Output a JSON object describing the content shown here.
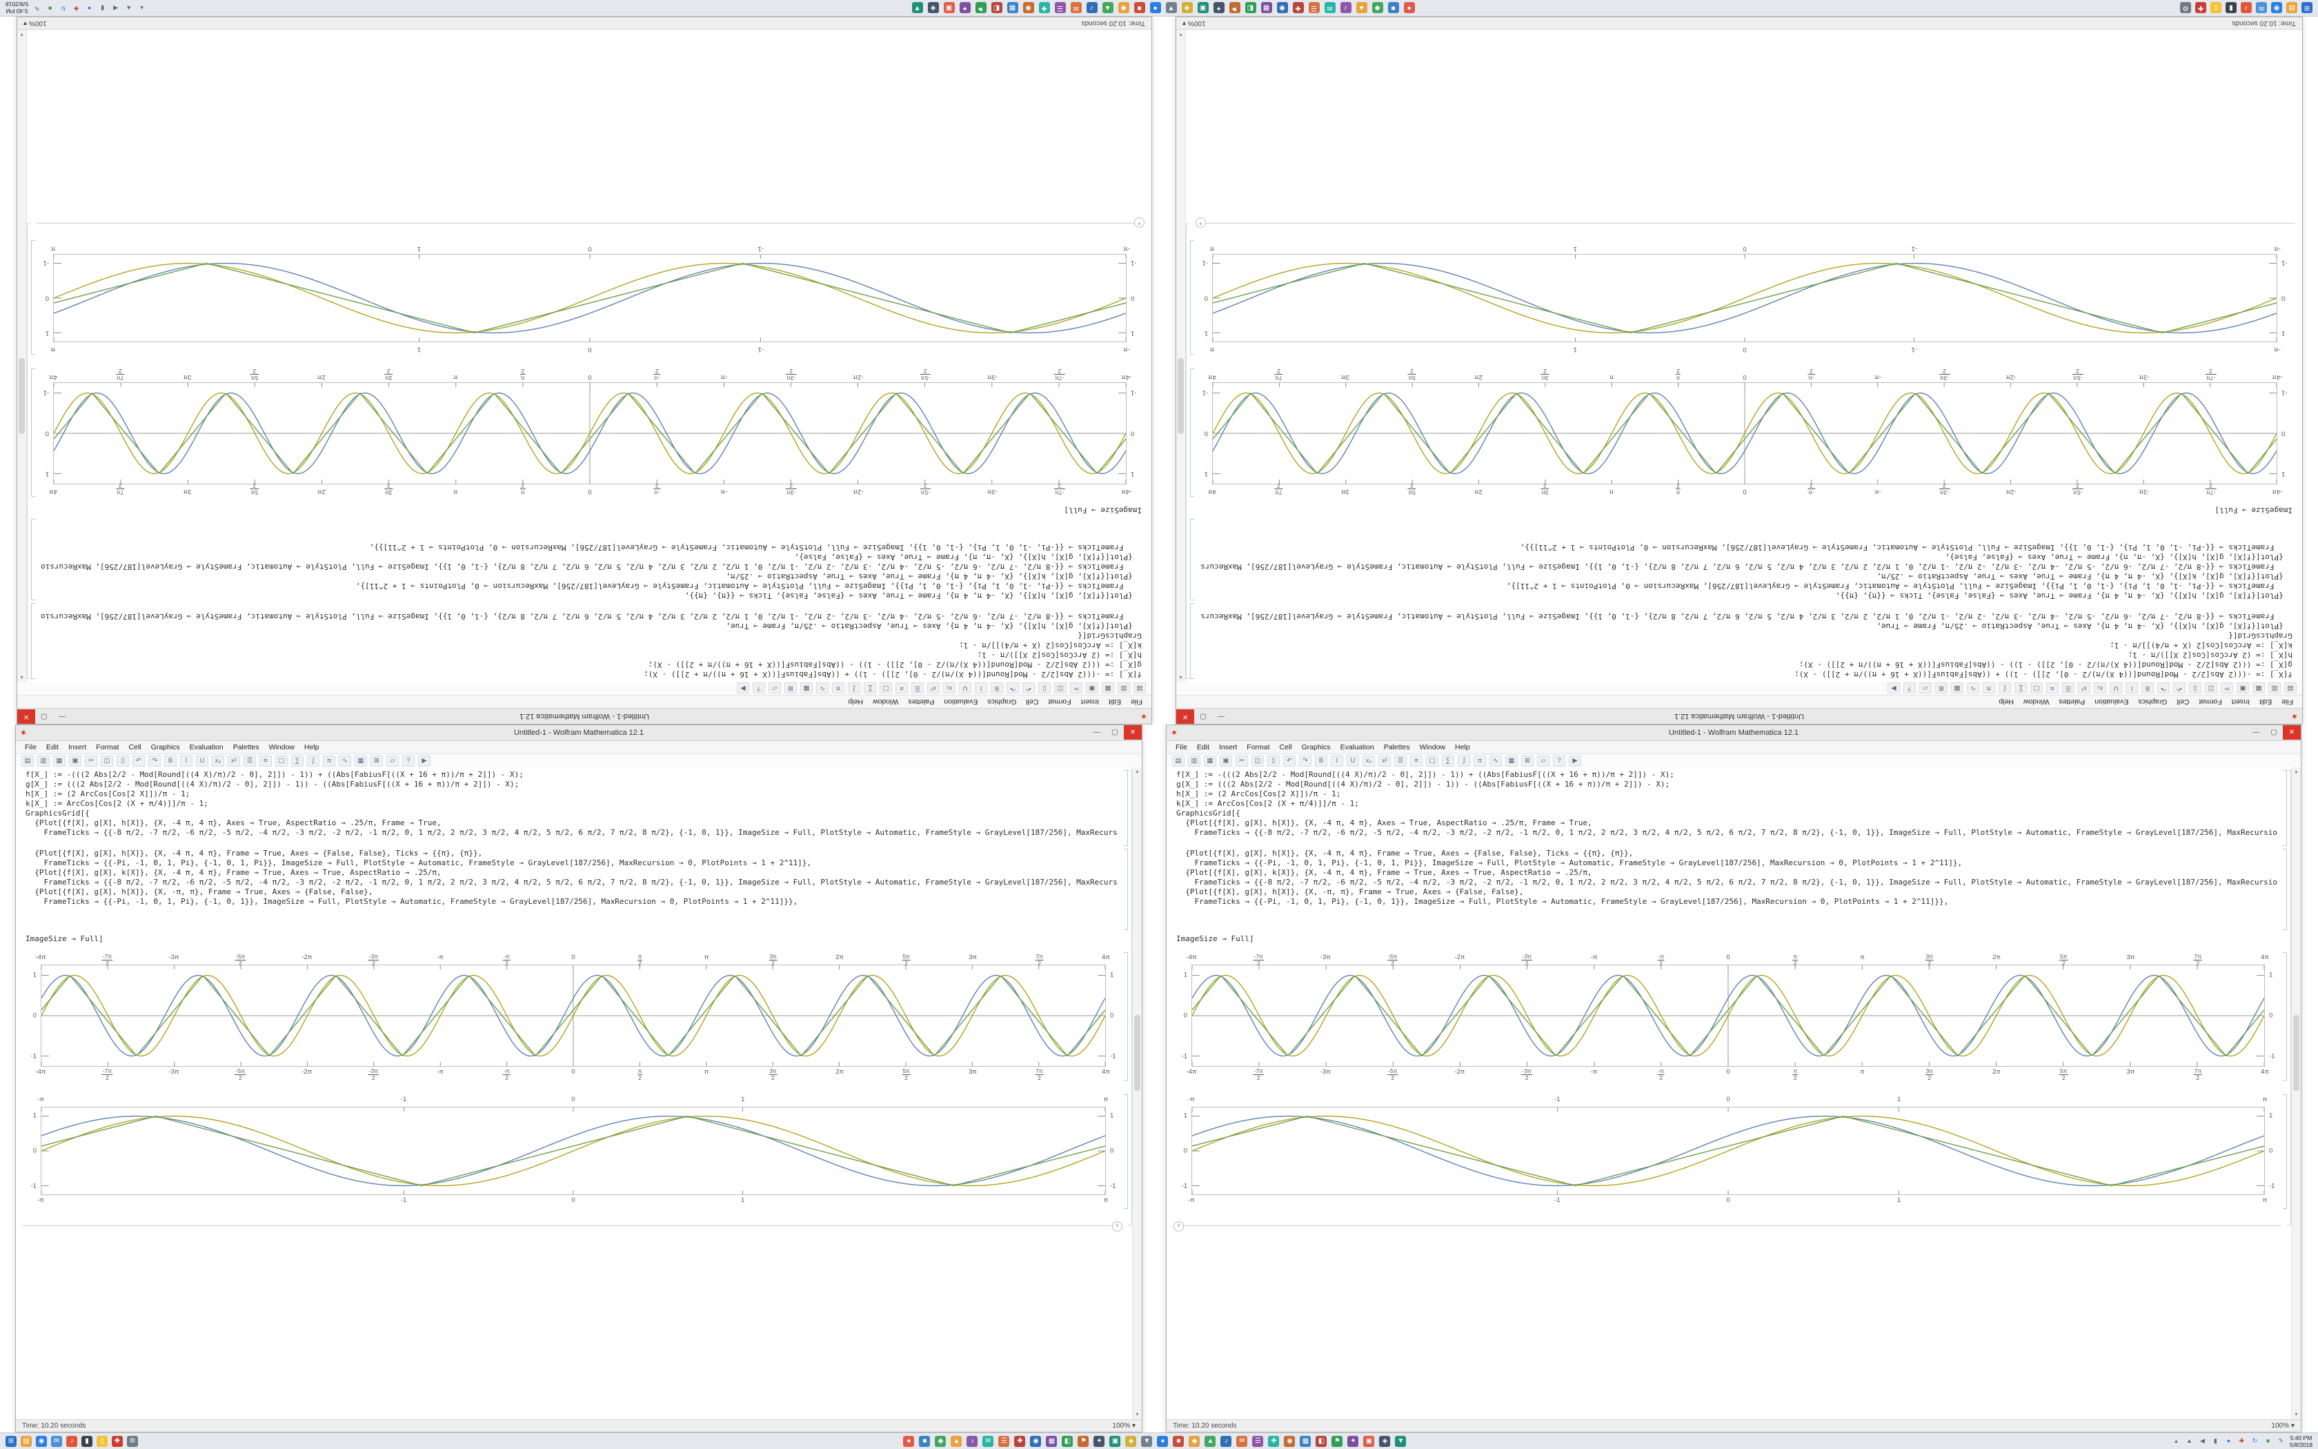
{
  "desktop": {
    "taskbar": {
      "start": {
        "glyph": "⊞",
        "color": "#2a6fc9"
      },
      "left_icons": [
        {
          "name": "file-explorer",
          "g": "▤",
          "c": "#e8a33d"
        },
        {
          "name": "browser",
          "g": "◉",
          "c": "#2a7de1"
        },
        {
          "name": "mail",
          "g": "✉",
          "c": "#4a90d9"
        },
        {
          "name": "media-player",
          "g": "♪",
          "c": "#e1553a"
        },
        {
          "name": "terminal",
          "g": "▮",
          "c": "#3a434c"
        },
        {
          "name": "notes",
          "g": "▯",
          "c": "#f1c232"
        },
        {
          "name": "antivirus",
          "g": "✚",
          "c": "#cc3b33"
        },
        {
          "name": "settings",
          "g": "⚙",
          "c": "#6d7a87"
        }
      ],
      "center_icons": [
        [
          "●",
          "#e05a47"
        ],
        [
          "■",
          "#3b82c4"
        ],
        [
          "◆",
          "#41a85f"
        ],
        [
          "▲",
          "#e8a33d"
        ],
        [
          "♪",
          "#8e55a8"
        ],
        [
          "✉",
          "#27b3a5"
        ],
        [
          "☰",
          "#d8703f"
        ],
        [
          "✚",
          "#b8433a"
        ],
        [
          "◉",
          "#2f6eb5"
        ],
        [
          "▦",
          "#7d4fa0"
        ],
        [
          "◧",
          "#2e9e52"
        ],
        [
          "⚑",
          "#c46a2e"
        ],
        [
          "✦",
          "#44546a"
        ],
        [
          "▣",
          "#1f8f7a"
        ],
        [
          "◈",
          "#d4af37"
        ],
        [
          "▼",
          "#74818d"
        ],
        [
          "●",
          "#2a7de1"
        ],
        [
          "■",
          "#cc4b3b"
        ],
        [
          "◆",
          "#e8a33d"
        ],
        [
          "▲",
          "#41a85f"
        ],
        [
          "♪",
          "#2f6eb5"
        ],
        [
          "✉",
          "#d8703f"
        ],
        [
          "☰",
          "#8e55a8"
        ],
        [
          "✚",
          "#27b3a5"
        ],
        [
          "◉",
          "#c46a2e"
        ],
        [
          "▦",
          "#3b82c4"
        ],
        [
          "◧",
          "#b8433a"
        ],
        [
          "⚑",
          "#2e9e52"
        ],
        [
          "✦",
          "#7d4fa0"
        ],
        [
          "▣",
          "#e05a47"
        ],
        [
          "◈",
          "#44546a"
        ],
        [
          "▼",
          "#1f8f7a"
        ]
      ],
      "tray_icons": [
        {
          "name": "hidden-icons",
          "g": "▴",
          "c": "#5f6b76"
        },
        {
          "name": "network",
          "g": "▲",
          "c": "#5f6b76"
        },
        {
          "name": "volume",
          "g": "◀",
          "c": "#5f6b76"
        },
        {
          "name": "battery",
          "g": "▮",
          "c": "#5f6b76"
        },
        {
          "name": "cloud-sync",
          "g": "●",
          "c": "#2a7de1"
        },
        {
          "name": "security",
          "g": "✚",
          "c": "#cc3b33"
        },
        {
          "name": "update",
          "g": "↻",
          "c": "#2a7de1"
        },
        {
          "name": "chat",
          "g": "■",
          "c": "#41a85f"
        },
        {
          "name": "pen-input",
          "g": "✎",
          "c": "#5f6b76"
        }
      ],
      "clock": {
        "time": "5:40 PM",
        "date": "5/8/2018"
      }
    },
    "notebook": {
      "title": "Untitled-1 - Wolfram Mathematica 12.1",
      "logo_glyph": "✶",
      "window_controls": {
        "minimize": "—",
        "maximize": "▢",
        "close": "✕"
      },
      "menus": [
        "File",
        "Edit",
        "Insert",
        "Format",
        "Cell",
        "Graphics",
        "Evaluation",
        "Palettes",
        "Window",
        "Help"
      ],
      "toolbar_icons": [
        {
          "name": "new",
          "g": "▤"
        },
        {
          "name": "open",
          "g": "▥"
        },
        {
          "name": "save",
          "g": "▦"
        },
        {
          "name": "print",
          "g": "▣"
        },
        {
          "name": "cut",
          "g": "✂"
        },
        {
          "name": "copy",
          "g": "◫"
        },
        {
          "name": "paste",
          "g": "▯"
        },
        {
          "name": "undo",
          "g": "↶"
        },
        {
          "name": "redo",
          "g": "↷"
        },
        {
          "name": "bold",
          "g": "B"
        },
        {
          "name": "italic",
          "g": "I"
        },
        {
          "name": "underline",
          "g": "U"
        },
        {
          "name": "subscript",
          "g": "x₂"
        },
        {
          "name": "superscript",
          "g": "x²"
        },
        {
          "name": "align-left",
          "g": "☰"
        },
        {
          "name": "align-center",
          "g": "≡"
        },
        {
          "name": "cell-style",
          "g": "▢"
        },
        {
          "name": "sum",
          "g": "∑"
        },
        {
          "name": "integral",
          "g": "∫"
        },
        {
          "name": "pi",
          "g": "π"
        },
        {
          "name": "sine-curve",
          "g": "∿"
        },
        {
          "name": "grid",
          "g": "▦"
        },
        {
          "name": "table",
          "g": "⊞"
        },
        {
          "name": "image",
          "g": "▱"
        },
        {
          "name": "help",
          "g": "?"
        },
        {
          "name": "evaluate",
          "g": "▶"
        }
      ],
      "code_cell_1": [
        "f[X_] := -(((2 Abs[2/2 - Mod[Round[((4 X)/π)/2 - 0], 2]]) - 1)) + ((Abs[FabiusF[((X + 16 + π))/π + 2]]) - X);",
        "g[X_] := (((2 Abs[2/2 - Mod[Round[((4 X)/π)/2 - 0], 2]]) - 1)) - ((Abs[FabiusF[((X + 16 + π))/π + 2]]) - X);",
        "h[X_] := (2 ArcCos[Cos[2 X]])/π - 1;",
        "k[X_] := ArcCos[Cos[2 (X + π/4)]]/π - 1;",
        "GraphicsGrid[{",
        "  {Plot[{f[X], g[X], h[X]}, {X, -4 π, 4 π}, Axes → True, AspectRatio → .25/π, Frame → True,",
        "    FrameTicks → {{-8 π/2, -7 π/2, -6 π/2, -5 π/2, -4 π/2, -3 π/2, -2 π/2, -1 π/2, 0, 1 π/2, 2 π/2, 3 π/2, 4 π/2, 5 π/2, 6 π/2, 7 π/2, 8 π/2}, {-1, 0, 1}}, ImageSize → Full, PlotStyle → Automatic, FrameStyle → GrayLevel[187/256], MaxRecursion → 0, PlotPoints → 1 + 2^11]},"
      ],
      "code_cell_2": [
        "  {Plot[{f[X], g[X], h[X]}, {X, -4 π, 4 π}, Frame → True, Axes → {False, False}, Ticks → {{π}, {π}},",
        "    FrameTicks → {{-Pi, -1, 0, 1, Pi}, {-1, 0, 1, Pi}}, ImageSize → Full, PlotStyle → Automatic, FrameStyle → GrayLevel[187/256], MaxRecursion → 0, PlotPoints → 1 + 2^11]},",
        "  {Plot[{f[X], g[X], k[X]}, {X, -4 π, 4 π}, Frame → True, Axes → True, AspectRatio → .25/π,",
        "    FrameTicks → {{-8 π/2, -7 π/2, -6 π/2, -5 π/2, -4 π/2, -3 π/2, -2 π/2, -1 π/2, 0, 1 π/2, 2 π/2, 3 π/2, 4 π/2, 5 π/2, 6 π/2, 7 π/2, 8 π/2}, {-1, 0, 1}}, ImageSize → Full, PlotStyle → Automatic, FrameStyle → GrayLevel[187/256], MaxRecursion → 0, PlotPoints → 1 + 2^11]},",
        "  {Plot[{f[X], g[X], h[X]}, {X, -π, π}, Frame → True, Axes → {False, False},",
        "    FrameTicks → {{-Pi, -1, 0, 1, Pi}, {-1, 0, 1}}, ImageSize → Full, PlotStyle → Automatic, FrameStyle → GrayLevel[187/256], MaxRecursion → 0, PlotPoints → 1 + 2^11]}},"
      ],
      "tail_line": "ImageSize → Full]",
      "insert_plus_glyph": "+",
      "scroll_up_glyph": "▲",
      "scroll_down_glyph": "▼",
      "status_time": "Time: 10.20 seconds",
      "status_zoom": "100%",
      "status_zoom_chevron": "▾"
    },
    "colors": {
      "plot_frame": "#bcbcbc",
      "axis": "#9a9a9a",
      "tick_label": "#555555",
      "close_button": "#d9352a"
    }
  },
  "chart_data": [
    {
      "type": "line",
      "title": "",
      "xlabel": "",
      "ylabel": "",
      "x_range": [
        -12.566370614,
        12.566370614
      ],
      "ylim": [
        -1.25,
        1.25
      ],
      "frame": true,
      "axes": true,
      "legend": "none",
      "x_ticks": [
        {
          "v": -12.566,
          "l": "-4π"
        },
        {
          "v": -10.996,
          "l": "-7π/2"
        },
        {
          "v": -9.4248,
          "l": "-3π"
        },
        {
          "v": -7.854,
          "l": "-5π/2"
        },
        {
          "v": -6.2832,
          "l": "-2π"
        },
        {
          "v": -4.7124,
          "l": "-3π/2"
        },
        {
          "v": -3.1416,
          "l": "-π"
        },
        {
          "v": -1.5708,
          "l": "-π/2"
        },
        {
          "v": 0,
          "l": "0"
        },
        {
          "v": 1.5708,
          "l": "π/2"
        },
        {
          "v": 3.1416,
          "l": "π"
        },
        {
          "v": 4.7124,
          "l": "3π/2"
        },
        {
          "v": 6.2832,
          "l": "2π"
        },
        {
          "v": 7.854,
          "l": "5π/2"
        },
        {
          "v": 9.4248,
          "l": "3π"
        },
        {
          "v": 10.996,
          "l": "7π/2"
        },
        {
          "v": 12.566,
          "l": "4π"
        }
      ],
      "y_ticks": [
        {
          "v": -1,
          "l": "-1"
        },
        {
          "v": 0,
          "l": "0"
        },
        {
          "v": 1,
          "l": "1"
        }
      ],
      "series": [
        {
          "name": "wave-blue",
          "fn": "sin",
          "freq": 2,
          "phase": 0.45,
          "amp": 1,
          "color": "#5E81B5"
        },
        {
          "name": "wave-olive",
          "fn": "sin",
          "freq": 2,
          "phase": 0,
          "amp": 1,
          "color": "#B3A21B"
        },
        {
          "name": "wave-green-triangle",
          "fn": "tri",
          "freq": 2,
          "phase": 0.22,
          "amp": 1,
          "color": "#6AA14C"
        }
      ]
    },
    {
      "type": "line",
      "title": "",
      "xlabel": "",
      "ylabel": "",
      "x_range": [
        -3.14159265,
        3.14159265
      ],
      "ylim": [
        -1.25,
        1.25
      ],
      "frame": true,
      "axes": false,
      "legend": "none",
      "x_ticks": [
        {
          "v": -3.1416,
          "l": "-π"
        },
        {
          "v": -1,
          "l": "-1"
        },
        {
          "v": 0,
          "l": "0"
        },
        {
          "v": 1,
          "l": "1"
        },
        {
          "v": 3.1416,
          "l": "π"
        }
      ],
      "y_ticks": [
        {
          "v": -1,
          "l": "-1"
        },
        {
          "v": 0,
          "l": "0"
        },
        {
          "v": 1,
          "l": "1"
        }
      ],
      "series": [
        {
          "name": "wave-blue",
          "fn": "sin",
          "freq": 2,
          "phase": 0.45,
          "amp": 1,
          "color": "#5E81B5"
        },
        {
          "name": "wave-olive",
          "fn": "sin",
          "freq": 2,
          "phase": 0,
          "amp": 1,
          "color": "#B3A21B"
        },
        {
          "name": "wave-green-triangle",
          "fn": "tri",
          "freq": 2,
          "phase": 0.22,
          "amp": 1,
          "color": "#6AA14C"
        }
      ]
    }
  ]
}
